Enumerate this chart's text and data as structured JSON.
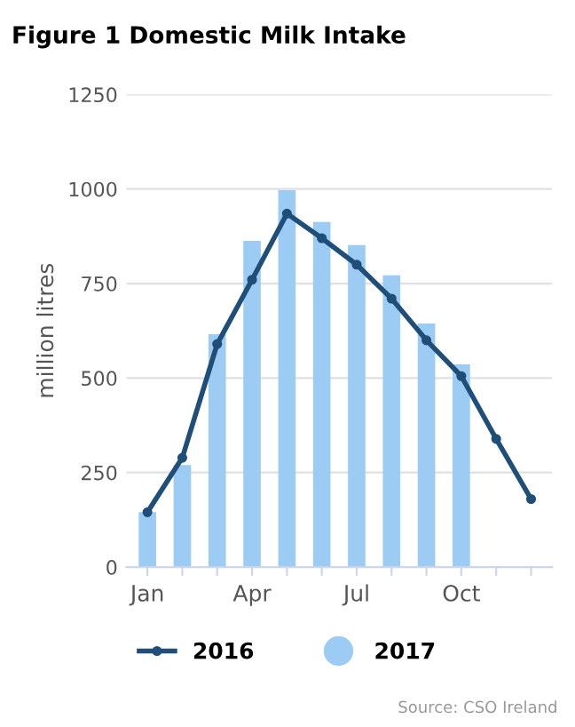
{
  "chart_data": {
    "type": "bar",
    "title": "Figure 1 Domestic Milk Intake",
    "ylabel": "million litres",
    "categories": [
      "Jan",
      null,
      null,
      "Apr",
      null,
      null,
      "Jul",
      null,
      null,
      "Oct",
      null,
      null
    ],
    "series": [
      {
        "name": "2016",
        "type": "line",
        "color": "#1f4e79",
        "marker": "circle",
        "values": [
          145,
          289,
          590,
          760,
          935,
          870,
          800,
          710,
          600,
          505,
          339,
          180
        ]
      },
      {
        "name": "2017",
        "color": "#9ccbf4",
        "values": [
          145,
          270,
          616,
          863,
          997,
          913,
          852,
          772,
          644,
          536,
          null,
          null
        ]
      }
    ],
    "ylim": [
      0,
      1250
    ],
    "yticks": [
      0,
      250,
      500,
      750,
      1000,
      1250
    ],
    "grid": "y",
    "legend": "bottom",
    "annotations": [
      "Source: CSO Ireland"
    ]
  }
}
